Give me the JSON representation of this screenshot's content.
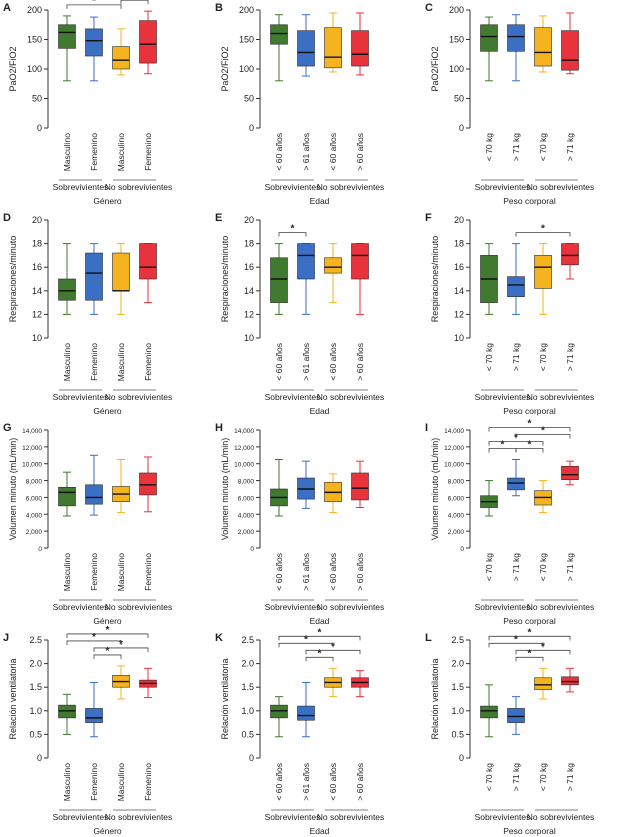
{
  "colors": {
    "verde": "#3f7a2e",
    "azul": "#3b6fc4",
    "amarillo": "#f4b31f",
    "rojo": "#e8323c",
    "eje": "#333333"
  },
  "chart_data": [
    {
      "letter": "A",
      "type": "box",
      "ylabel": "PaO2/FiO2",
      "ylim": [
        0,
        200
      ],
      "yticks": [
        "0",
        "50",
        "100",
        "150",
        "200"
      ],
      "ytick_values": [
        0,
        50,
        100,
        150,
        200
      ],
      "categories": [
        "Masculino",
        "Femenino",
        "Masculino",
        "Femenino"
      ],
      "groups": [
        "Sobrevivientes",
        "No sobrevivientes"
      ],
      "xlabel": "Género",
      "boxes": [
        {
          "min": 80,
          "q1": 135,
          "median": 162,
          "q3": 175,
          "max": 190
        },
        {
          "min": 80,
          "q1": 122,
          "median": 148,
          "q3": 168,
          "max": 188
        },
        {
          "min": 90,
          "q1": 100,
          "median": 115,
          "q3": 138,
          "max": 168
        },
        {
          "min": 92,
          "q1": 110,
          "median": 142,
          "q3": 182,
          "max": 198
        }
      ],
      "significance": [
        {
          "from": 0,
          "to": 2,
          "level": 1,
          "label": "*"
        },
        {
          "from": 0,
          "to": 3,
          "level": 2,
          "label": "*"
        },
        {
          "from": 2,
          "to": 3,
          "level": 1,
          "label": "*"
        }
      ]
    },
    {
      "letter": "B",
      "type": "box",
      "ylabel": "PaO2/FiO2",
      "ylim": [
        0,
        200
      ],
      "yticks": [
        "0",
        "50",
        "100",
        "150",
        "200"
      ],
      "ytick_values": [
        0,
        50,
        100,
        150,
        200
      ],
      "categories": [
        "< 60 años",
        "> 61 años",
        "< 60 años",
        "> 60 años"
      ],
      "groups": [
        "Sobrevivientes",
        "No sobrevivientes"
      ],
      "xlabel": "Edad",
      "boxes": [
        {
          "min": 80,
          "q1": 142,
          "median": 160,
          "q3": 175,
          "max": 192
        },
        {
          "min": 88,
          "q1": 105,
          "median": 128,
          "q3": 165,
          "max": 192
        },
        {
          "min": 95,
          "q1": 102,
          "median": 120,
          "q3": 170,
          "max": 195
        },
        {
          "min": 90,
          "q1": 105,
          "median": 125,
          "q3": 165,
          "max": 195
        }
      ],
      "significance": []
    },
    {
      "letter": "C",
      "type": "box",
      "ylabel": "PaO2/FiO2",
      "ylim": [
        0,
        200
      ],
      "yticks": [
        "0",
        "50",
        "100",
        "150",
        "200"
      ],
      "ytick_values": [
        0,
        50,
        100,
        150,
        200
      ],
      "categories": [
        "< 70 kg",
        "> 71 kg",
        "< 70 kg",
        "> 71 kg"
      ],
      "groups": [
        "Sobrevivientes",
        "No sobrevivientes"
      ],
      "xlabel": "Peso corporal",
      "boxes": [
        {
          "min": 80,
          "q1": 130,
          "median": 155,
          "q3": 175,
          "max": 188
        },
        {
          "min": 80,
          "q1": 130,
          "median": 155,
          "q3": 175,
          "max": 192
        },
        {
          "min": 95,
          "q1": 105,
          "median": 128,
          "q3": 170,
          "max": 190
        },
        {
          "min": 92,
          "q1": 98,
          "median": 115,
          "q3": 165,
          "max": 195
        }
      ],
      "significance": []
    },
    {
      "letter": "D",
      "type": "box",
      "ylabel": "Respiraciones/minuto",
      "ylim": [
        10,
        20
      ],
      "yticks": [
        "10",
        "12",
        "14",
        "16",
        "18",
        "20"
      ],
      "ytick_values": [
        10,
        12,
        14,
        16,
        18,
        20
      ],
      "categories": [
        "Masculino",
        "Femenino",
        "Masculino",
        "Femenino"
      ],
      "groups": [
        "Sobrevivientes",
        "No sobrevivientes"
      ],
      "xlabel": "Género",
      "boxes": [
        {
          "min": 12,
          "q1": 13.2,
          "median": 14,
          "q3": 15,
          "max": 18
        },
        {
          "min": 12,
          "q1": 13.2,
          "median": 15.5,
          "q3": 17.2,
          "max": 18
        },
        {
          "min": 12,
          "q1": 14,
          "median": 14,
          "q3": 17.2,
          "max": 18
        },
        {
          "min": 13,
          "q1": 15,
          "median": 16,
          "q3": 18,
          "max": 18
        }
      ],
      "significance": []
    },
    {
      "letter": "E",
      "type": "box",
      "ylabel": "Respiraciones/minuto",
      "ylim": [
        10,
        20
      ],
      "yticks": [
        "10",
        "12",
        "14",
        "16",
        "18",
        "20"
      ],
      "ytick_values": [
        10,
        12,
        14,
        16,
        18,
        20
      ],
      "categories": [
        "< 60 años",
        "> 61 años",
        "< 60 años",
        "> 60 años"
      ],
      "groups": [
        "Sobrevivientes",
        "No sobrevivientes"
      ],
      "xlabel": "Edad",
      "boxes": [
        {
          "min": 12,
          "q1": 13,
          "median": 15,
          "q3": 16.8,
          "max": 18
        },
        {
          "min": 12,
          "q1": 15,
          "median": 17,
          "q3": 18,
          "max": 18
        },
        {
          "min": 13,
          "q1": 15.5,
          "median": 16,
          "q3": 16.8,
          "max": 18
        },
        {
          "min": 12,
          "q1": 15,
          "median": 17,
          "q3": 18,
          "max": 18
        }
      ],
      "significance": [
        {
          "from": 0,
          "to": 1,
          "level": 1,
          "label": "*"
        }
      ]
    },
    {
      "letter": "F",
      "type": "box",
      "ylabel": "Respiraciones/minuto",
      "ylim": [
        10,
        20
      ],
      "yticks": [
        "10",
        "12",
        "14",
        "16",
        "18",
        "20"
      ],
      "ytick_values": [
        10,
        12,
        14,
        16,
        18,
        20
      ],
      "categories": [
        "< 70 kg",
        "> 71 kg",
        "< 70 kg",
        "> 71 kg"
      ],
      "groups": [
        "Sobrevivientes",
        "No sobrevivientes"
      ],
      "xlabel": "Peso corporal",
      "boxes": [
        {
          "min": 12,
          "q1": 13,
          "median": 15,
          "q3": 17,
          "max": 18
        },
        {
          "min": 12,
          "q1": 13.5,
          "median": 14.5,
          "q3": 15.2,
          "max": 18
        },
        {
          "min": 12,
          "q1": 14.2,
          "median": 16,
          "q3": 17,
          "max": 18
        },
        {
          "min": 15,
          "q1": 16.2,
          "median": 17,
          "q3": 18,
          "max": 18
        }
      ],
      "significance": [
        {
          "from": 1,
          "to": 3,
          "level": 1,
          "label": "*"
        }
      ]
    },
    {
      "letter": "G",
      "type": "box",
      "ylabel": "Volumen minuto (mL/min)",
      "ylim": [
        0,
        14000
      ],
      "yticks": [
        "0",
        "2,000",
        "4,000",
        "6,000",
        "8,000",
        "10,000",
        "12,000",
        "14,000"
      ],
      "ytick_values": [
        0,
        2000,
        4000,
        6000,
        8000,
        10000,
        12000,
        14000
      ],
      "categories": [
        "Masculino",
        "Femenino",
        "Masculino",
        "Femenino"
      ],
      "groups": [
        "Sobrevivientes",
        "No sobrevivientes"
      ],
      "xlabel": "Género",
      "boxes": [
        {
          "min": 3800,
          "q1": 5000,
          "median": 6600,
          "q3": 7200,
          "max": 9000
        },
        {
          "min": 3900,
          "q1": 5200,
          "median": 6000,
          "q3": 7500,
          "max": 11000
        },
        {
          "min": 4200,
          "q1": 5500,
          "median": 6400,
          "q3": 7300,
          "max": 10500
        },
        {
          "min": 4300,
          "q1": 6300,
          "median": 7500,
          "q3": 8900,
          "max": 10800
        }
      ],
      "significance": []
    },
    {
      "letter": "H",
      "type": "box",
      "ylabel": "Volumen minuto (mL/min)",
      "ylim": [
        0,
        14000
      ],
      "yticks": [
        "0",
        "2,000",
        "4,000",
        "6,000",
        "8,000",
        "10,000",
        "12,000",
        "14,000"
      ],
      "ytick_values": [
        0,
        2000,
        4000,
        6000,
        8000,
        10000,
        12000,
        14000
      ],
      "categories": [
        "< 60 años",
        "> 61 años",
        "< 60 años",
        "> 60 años"
      ],
      "groups": [
        "Sobrevivientes",
        "No sobrevivientes"
      ],
      "xlabel": "Edad",
      "boxes": [
        {
          "min": 3800,
          "q1": 5000,
          "median": 6000,
          "q3": 7000,
          "max": 10500
        },
        {
          "min": 4700,
          "q1": 5800,
          "median": 7000,
          "q3": 8300,
          "max": 10300
        },
        {
          "min": 4200,
          "q1": 5500,
          "median": 6600,
          "q3": 7800,
          "max": 8800
        },
        {
          "min": 4800,
          "q1": 5700,
          "median": 7100,
          "q3": 8900,
          "max": 10300
        }
      ],
      "significance": []
    },
    {
      "letter": "I",
      "type": "box",
      "ylabel": "Volumen minuto (mL/min)",
      "ylim": [
        0,
        14000
      ],
      "yticks": [
        "0",
        "2,000",
        "4,000",
        "6,000",
        "8,000",
        "10,000",
        "12,000",
        "14,000"
      ],
      "ytick_values": [
        0,
        2000,
        4000,
        6000,
        8000,
        10000,
        12000,
        14000
      ],
      "categories": [
        "< 70 kg",
        "> 71 kg",
        "< 70 kg",
        "> 71 kg"
      ],
      "groups": [
        "Sobrevivientes",
        "No sobrevivientes"
      ],
      "xlabel": "Peso corporal",
      "boxes": [
        {
          "min": 3800,
          "q1": 4800,
          "median": 5500,
          "q3": 6200,
          "max": 8000
        },
        {
          "min": 6200,
          "q1": 6900,
          "median": 7700,
          "q3": 8300,
          "max": 10500
        },
        {
          "min": 4200,
          "q1": 5100,
          "median": 6000,
          "q3": 6800,
          "max": 8000
        },
        {
          "min": 7500,
          "q1": 8100,
          "median": 8700,
          "q3": 9700,
          "max": 10300
        }
      ],
      "significance": [
        {
          "from": 0,
          "to": 1,
          "level": 1,
          "label": "*"
        },
        {
          "from": 1,
          "to": 2,
          "level": 1,
          "label": "*"
        },
        {
          "from": 0,
          "to": 2,
          "level": 2,
          "label": "*"
        },
        {
          "from": 1,
          "to": 3,
          "level": 3,
          "label": "*"
        },
        {
          "from": 0,
          "to": 3,
          "level": 4,
          "label": "*"
        }
      ]
    },
    {
      "letter": "J",
      "type": "box",
      "ylabel": "Relación ventilatoria",
      "ylim": [
        0,
        2.5
      ],
      "yticks": [
        "0",
        "0.5",
        "1.0",
        "1.5",
        "2.0",
        "2.5"
      ],
      "ytick_values": [
        0,
        0.5,
        1,
        1.5,
        2,
        2.5
      ],
      "categories": [
        "Masculino",
        "Femenino",
        "Masculino",
        "Femenino"
      ],
      "groups": [
        "Sobrevivientes",
        "No sobrevivientes"
      ],
      "xlabel": "Género",
      "boxes": [
        {
          "min": 0.5,
          "q1": 0.85,
          "median": 1.0,
          "q3": 1.12,
          "max": 1.35
        },
        {
          "min": 0.45,
          "q1": 0.75,
          "median": 0.85,
          "q3": 1.05,
          "max": 1.6
        },
        {
          "min": 1.25,
          "q1": 1.5,
          "median": 1.62,
          "q3": 1.75,
          "max": 1.95
        },
        {
          "min": 1.28,
          "q1": 1.5,
          "median": 1.58,
          "q3": 1.65,
          "max": 1.9
        }
      ],
      "significance": [
        {
          "from": 1,
          "to": 2,
          "level": 1,
          "label": "*"
        },
        {
          "from": 1,
          "to": 3,
          "level": 2,
          "label": "*"
        },
        {
          "from": 0,
          "to": 2,
          "level": 3,
          "label": "*"
        },
        {
          "from": 0,
          "to": 3,
          "level": 4,
          "label": "*"
        }
      ]
    },
    {
      "letter": "K",
      "type": "box",
      "ylabel": "Relación ventilatoria",
      "ylim": [
        0,
        2.5
      ],
      "yticks": [
        "0",
        "0.5",
        "1.0",
        "1.5",
        "2.0",
        "2.5"
      ],
      "ytick_values": [
        0,
        0.5,
        1,
        1.5,
        2,
        2.5
      ],
      "categories": [
        "< 60 años",
        "> 61 años",
        "< 60 años",
        "> 60 años"
      ],
      "groups": [
        "Sobrevivientes",
        "No sobrevivientes"
      ],
      "xlabel": "Edad",
      "boxes": [
        {
          "min": 0.45,
          "q1": 0.85,
          "median": 1.0,
          "q3": 1.12,
          "max": 1.3
        },
        {
          "min": 0.45,
          "q1": 0.8,
          "median": 0.9,
          "q3": 1.1,
          "max": 1.6
        },
        {
          "min": 1.3,
          "q1": 1.5,
          "median": 1.6,
          "q3": 1.7,
          "max": 1.9
        },
        {
          "min": 1.3,
          "q1": 1.5,
          "median": 1.6,
          "q3": 1.7,
          "max": 1.85
        }
      ],
      "significance": [
        {
          "from": 1,
          "to": 2,
          "level": 1,
          "label": "*"
        },
        {
          "from": 1,
          "to": 3,
          "level": 2,
          "label": "*"
        },
        {
          "from": 0,
          "to": 2,
          "level": 3,
          "label": "*"
        },
        {
          "from": 0,
          "to": 3,
          "level": 4,
          "label": "*"
        }
      ]
    },
    {
      "letter": "L",
      "type": "box",
      "ylabel": "Relación ventilatoria",
      "ylim": [
        0,
        2.5
      ],
      "yticks": [
        "0",
        "0.5",
        "1.0",
        "1.5",
        "2.0",
        "2.5"
      ],
      "ytick_values": [
        0,
        0.5,
        1,
        1.5,
        2,
        2.5
      ],
      "categories": [
        "< 70 kg",
        "> 71 kg",
        "< 70 kg",
        "> 71 kg"
      ],
      "groups": [
        "Sobrevivientes",
        "No sobrevivientes"
      ],
      "xlabel": "Peso corporal",
      "boxes": [
        {
          "min": 0.45,
          "q1": 0.85,
          "median": 1.0,
          "q3": 1.1,
          "max": 1.55
        },
        {
          "min": 0.5,
          "q1": 0.75,
          "median": 0.88,
          "q3": 1.05,
          "max": 1.3
        },
        {
          "min": 1.25,
          "q1": 1.45,
          "median": 1.55,
          "q3": 1.7,
          "max": 1.9
        },
        {
          "min": 1.4,
          "q1": 1.55,
          "median": 1.62,
          "q3": 1.72,
          "max": 1.9
        }
      ],
      "significance": [
        {
          "from": 1,
          "to": 2,
          "level": 1,
          "label": "*"
        },
        {
          "from": 1,
          "to": 3,
          "level": 2,
          "label": "*"
        },
        {
          "from": 0,
          "to": 2,
          "level": 3,
          "label": "*"
        },
        {
          "from": 0,
          "to": 3,
          "level": 4,
          "label": "*"
        }
      ]
    }
  ]
}
